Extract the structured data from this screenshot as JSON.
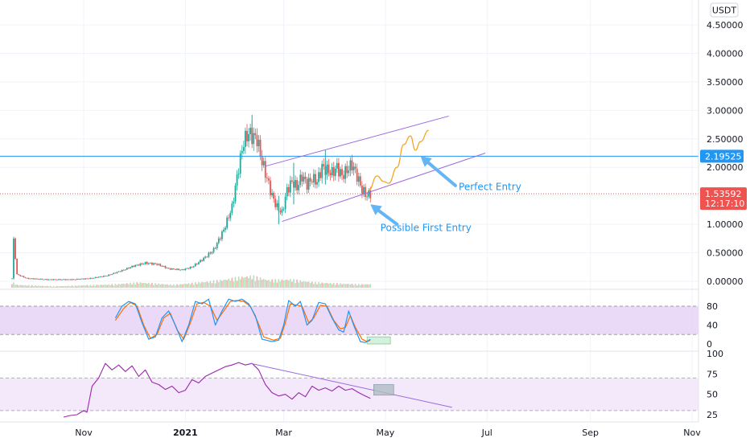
{
  "chart_data": {
    "type": "line",
    "title": "",
    "quote_currency": "USDT",
    "price_ylim": [
      -0.1,
      4.75
    ],
    "price_ticks": [
      "4.50000",
      "4.00000",
      "3.50000",
      "3.00000",
      "2.50000",
      "2.00000",
      "1.50000",
      "1.00000",
      "0.50000",
      "0.00000"
    ],
    "time_ticks": [
      {
        "label": "Nov",
        "bold": false
      },
      {
        "label": "2021",
        "bold": true
      },
      {
        "label": "Mar",
        "bold": false
      },
      {
        "label": "May",
        "bold": false
      },
      {
        "label": "Jul",
        "bold": false
      },
      {
        "label": "Sep",
        "bold": false
      },
      {
        "label": "Nov",
        "bold": false
      }
    ],
    "horizontal_level": {
      "value": 2.19525,
      "label": "2.19525",
      "color": "#2196f3"
    },
    "last_price": {
      "value": 1.53592,
      "label": "1.53592",
      "countdown": "12:17:10",
      "color": "#ef5350"
    },
    "price_series": [
      {
        "d": "2020-09-19",
        "v": 0.05
      },
      {
        "d": "2020-09-20",
        "v": 0.72
      },
      {
        "d": "2020-09-22",
        "v": 0.12
      },
      {
        "d": "2020-09-28",
        "v": 0.05
      },
      {
        "d": "2020-10-10",
        "v": 0.03
      },
      {
        "d": "2020-10-25",
        "v": 0.03
      },
      {
        "d": "2020-11-05",
        "v": 0.05
      },
      {
        "d": "2020-11-15",
        "v": 0.1
      },
      {
        "d": "2020-11-25",
        "v": 0.2
      },
      {
        "d": "2020-12-01",
        "v": 0.27
      },
      {
        "d": "2020-12-08",
        "v": 0.32
      },
      {
        "d": "2020-12-15",
        "v": 0.3
      },
      {
        "d": "2020-12-22",
        "v": 0.22
      },
      {
        "d": "2020-12-30",
        "v": 0.2
      },
      {
        "d": "2021-01-05",
        "v": 0.25
      },
      {
        "d": "2021-01-12",
        "v": 0.4
      },
      {
        "d": "2021-01-18",
        "v": 0.55
      },
      {
        "d": "2021-01-24",
        "v": 0.9
      },
      {
        "d": "2021-01-29",
        "v": 1.3
      },
      {
        "d": "2021-02-02",
        "v": 2.0
      },
      {
        "d": "2021-02-05",
        "v": 2.45
      },
      {
        "d": "2021-02-08",
        "v": 2.6
      },
      {
        "d": "2021-02-10",
        "v": 2.55
      },
      {
        "d": "2021-02-13",
        "v": 2.5
      },
      {
        "d": "2021-02-16",
        "v": 2.1
      },
      {
        "d": "2021-02-19",
        "v": 1.8
      },
      {
        "d": "2021-02-22",
        "v": 1.5
      },
      {
        "d": "2021-02-25",
        "v": 1.3
      },
      {
        "d": "2021-02-28",
        "v": 1.2
      },
      {
        "d": "2021-03-03",
        "v": 1.6
      },
      {
        "d": "2021-03-06",
        "v": 1.75
      },
      {
        "d": "2021-03-09",
        "v": 1.65
      },
      {
        "d": "2021-03-12",
        "v": 1.85
      },
      {
        "d": "2021-03-15",
        "v": 1.7
      },
      {
        "d": "2021-03-18",
        "v": 1.8
      },
      {
        "d": "2021-03-21",
        "v": 1.75
      },
      {
        "d": "2021-03-24",
        "v": 2.0
      },
      {
        "d": "2021-03-27",
        "v": 1.95
      },
      {
        "d": "2021-03-30",
        "v": 1.9
      },
      {
        "d": "2021-04-02",
        "v": 2.0
      },
      {
        "d": "2021-04-05",
        "v": 1.85
      },
      {
        "d": "2021-04-08",
        "v": 1.95
      },
      {
        "d": "2021-04-11",
        "v": 2.05
      },
      {
        "d": "2021-04-14",
        "v": 1.85
      },
      {
        "d": "2021-04-17",
        "v": 1.6
      },
      {
        "d": "2021-04-20",
        "v": 1.5
      },
      {
        "d": "2021-04-22",
        "v": 1.54
      }
    ],
    "price_spikes": [
      {
        "d": "2021-02-10",
        "high": 2.92,
        "low": 2.4
      },
      {
        "d": "2021-03-07",
        "high": 2.08,
        "low": 1.35
      },
      {
        "d": "2021-03-26",
        "high": 2.3,
        "low": 1.7
      },
      {
        "d": "2021-02-26",
        "high": 1.5,
        "low": 1.0
      }
    ],
    "volume_series": [
      {
        "d": "2020-09-19",
        "v": 0.5
      },
      {
        "d": "2020-09-22",
        "v": 0.25
      },
      {
        "d": "2020-10-15",
        "v": 0.12
      },
      {
        "d": "2020-11-20",
        "v": 0.3
      },
      {
        "d": "2020-12-05",
        "v": 0.45
      },
      {
        "d": "2020-12-25",
        "v": 0.25
      },
      {
        "d": "2021-01-20",
        "v": 0.6
      },
      {
        "d": "2021-02-03",
        "v": 0.9
      },
      {
        "d": "2021-02-10",
        "v": 1.0
      },
      {
        "d": "2021-02-20",
        "v": 0.65
      },
      {
        "d": "2021-03-05",
        "v": 0.7
      },
      {
        "d": "2021-03-20",
        "v": 0.45
      },
      {
        "d": "2021-04-05",
        "v": 0.35
      },
      {
        "d": "2021-04-15",
        "v": 0.3
      },
      {
        "d": "2021-04-22",
        "v": 0.3
      }
    ],
    "channel": {
      "upper": [
        {
          "d": "2021-02-18",
          "v": 2.02
        },
        {
          "d": "2021-06-08",
          "v": 2.9
        }
      ],
      "lower": [
        {
          "d": "2021-02-28",
          "v": 1.05
        },
        {
          "d": "2021-06-30",
          "v": 2.25
        }
      ],
      "color": "#9c6ade"
    },
    "projection": [
      {
        "d": "2021-04-21",
        "v": 1.6
      },
      {
        "d": "2021-04-26",
        "v": 1.85
      },
      {
        "d": "2021-04-30",
        "v": 1.75
      },
      {
        "d": "2021-05-03",
        "v": 1.72
      },
      {
        "d": "2021-05-08",
        "v": 2.0
      },
      {
        "d": "2021-05-12",
        "v": 2.4
      },
      {
        "d": "2021-05-16",
        "v": 2.55
      },
      {
        "d": "2021-05-19",
        "v": 2.3
      },
      {
        "d": "2021-05-22",
        "v": 2.45
      },
      {
        "d": "2021-05-27",
        "v": 2.65
      }
    ],
    "projection_color": "#f5a623",
    "annotations": [
      {
        "text": "Perfect Entry",
        "text_at": {
          "d": "2021-06-14",
          "v": 1.6
        },
        "arrow_from": {
          "d": "2021-06-12",
          "v": 1.68
        },
        "arrow_to": {
          "d": "2021-05-22",
          "v": 2.2
        }
      },
      {
        "text": "Possible First Entry",
        "text_at": {
          "d": "2021-04-28",
          "v": 0.88
        },
        "arrow_from": {
          "d": "2021-05-08",
          "v": 1.0
        },
        "arrow_to": {
          "d": "2021-04-22",
          "v": 1.35
        }
      }
    ],
    "stoch": {
      "ylim": [
        0,
        100
      ],
      "ticks": [
        "80",
        "40",
        "0"
      ],
      "band": [
        20,
        80
      ],
      "k_color": "#2196f3",
      "d_color": "#ff6d00",
      "k": [
        {
          "d": "2020-11-20",
          "v": 55
        },
        {
          "d": "2020-11-24",
          "v": 80
        },
        {
          "d": "2020-11-28",
          "v": 90
        },
        {
          "d": "2020-12-02",
          "v": 85
        },
        {
          "d": "2020-12-06",
          "v": 45
        },
        {
          "d": "2020-12-10",
          "v": 10
        },
        {
          "d": "2020-12-14",
          "v": 15
        },
        {
          "d": "2020-12-18",
          "v": 55
        },
        {
          "d": "2020-12-22",
          "v": 70
        },
        {
          "d": "2020-12-26",
          "v": 40
        },
        {
          "d": "2020-12-30",
          "v": 5
        },
        {
          "d": "2021-01-03",
          "v": 40
        },
        {
          "d": "2021-01-07",
          "v": 90
        },
        {
          "d": "2021-01-11",
          "v": 85
        },
        {
          "d": "2021-01-15",
          "v": 95
        },
        {
          "d": "2021-01-19",
          "v": 40
        },
        {
          "d": "2021-01-23",
          "v": 70
        },
        {
          "d": "2021-01-27",
          "v": 95
        },
        {
          "d": "2021-01-31",
          "v": 90
        },
        {
          "d": "2021-02-04",
          "v": 95
        },
        {
          "d": "2021-02-08",
          "v": 85
        },
        {
          "d": "2021-02-12",
          "v": 60
        },
        {
          "d": "2021-02-16",
          "v": 10
        },
        {
          "d": "2021-02-22",
          "v": 5
        },
        {
          "d": "2021-02-26",
          "v": 8
        },
        {
          "d": "2021-03-01",
          "v": 40
        },
        {
          "d": "2021-03-04",
          "v": 92
        },
        {
          "d": "2021-03-08",
          "v": 80
        },
        {
          "d": "2021-03-11",
          "v": 90
        },
        {
          "d": "2021-03-15",
          "v": 40
        },
        {
          "d": "2021-03-18",
          "v": 50
        },
        {
          "d": "2021-03-22",
          "v": 88
        },
        {
          "d": "2021-03-26",
          "v": 85
        },
        {
          "d": "2021-03-30",
          "v": 55
        },
        {
          "d": "2021-04-03",
          "v": 30
        },
        {
          "d": "2021-04-06",
          "v": 25
        },
        {
          "d": "2021-04-09",
          "v": 70
        },
        {
          "d": "2021-04-12",
          "v": 40
        },
        {
          "d": "2021-04-16",
          "v": 5
        },
        {
          "d": "2021-04-19",
          "v": 3
        },
        {
          "d": "2021-04-22",
          "v": 10
        }
      ],
      "d": [
        {
          "d": "2020-11-20",
          "v": 50
        },
        {
          "d": "2020-11-25",
          "v": 75
        },
        {
          "d": "2020-11-29",
          "v": 88
        },
        {
          "d": "2020-12-03",
          "v": 80
        },
        {
          "d": "2020-12-07",
          "v": 40
        },
        {
          "d": "2020-12-11",
          "v": 12
        },
        {
          "d": "2020-12-15",
          "v": 20
        },
        {
          "d": "2020-12-19",
          "v": 55
        },
        {
          "d": "2020-12-23",
          "v": 65
        },
        {
          "d": "2020-12-27",
          "v": 30
        },
        {
          "d": "2020-12-31",
          "v": 10
        },
        {
          "d": "2021-01-04",
          "v": 45
        },
        {
          "d": "2021-01-08",
          "v": 85
        },
        {
          "d": "2021-01-12",
          "v": 88
        },
        {
          "d": "2021-01-16",
          "v": 80
        },
        {
          "d": "2021-01-20",
          "v": 50
        },
        {
          "d": "2021-01-24",
          "v": 70
        },
        {
          "d": "2021-01-28",
          "v": 90
        },
        {
          "d": "2021-02-01",
          "v": 92
        },
        {
          "d": "2021-02-05",
          "v": 90
        },
        {
          "d": "2021-02-09",
          "v": 80
        },
        {
          "d": "2021-02-13",
          "v": 50
        },
        {
          "d": "2021-02-17",
          "v": 15
        },
        {
          "d": "2021-02-23",
          "v": 8
        },
        {
          "d": "2021-02-27",
          "v": 12
        },
        {
          "d": "2021-03-02",
          "v": 45
        },
        {
          "d": "2021-03-05",
          "v": 85
        },
        {
          "d": "2021-03-09",
          "v": 82
        },
        {
          "d": "2021-03-12",
          "v": 80
        },
        {
          "d": "2021-03-16",
          "v": 45
        },
        {
          "d": "2021-03-19",
          "v": 55
        },
        {
          "d": "2021-03-23",
          "v": 82
        },
        {
          "d": "2021-03-27",
          "v": 80
        },
        {
          "d": "2021-03-31",
          "v": 50
        },
        {
          "d": "2021-04-04",
          "v": 32
        },
        {
          "d": "2021-04-07",
          "v": 35
        },
        {
          "d": "2021-04-10",
          "v": 60
        },
        {
          "d": "2021-04-13",
          "v": 35
        },
        {
          "d": "2021-04-17",
          "v": 10
        },
        {
          "d": "2021-04-20",
          "v": 5
        },
        {
          "d": "2021-04-22",
          "v": 8
        }
      ],
      "highlight": {
        "d0": "2021-04-20",
        "d1": "2021-05-04",
        "v0": 0,
        "v1": 15
      }
    },
    "rsi": {
      "ylim": [
        20,
        100
      ],
      "ticks": [
        "100",
        "75",
        "50",
        "25"
      ],
      "band": [
        30,
        70
      ],
      "color": "#9c27b0",
      "values": [
        {
          "d": "2020-10-20",
          "v": 22
        },
        {
          "d": "2020-10-24",
          "v": 24
        },
        {
          "d": "2020-10-28",
          "v": 25
        },
        {
          "d": "2020-11-01",
          "v": 30
        },
        {
          "d": "2020-11-03",
          "v": 28
        },
        {
          "d": "2020-11-06",
          "v": 60
        },
        {
          "d": "2020-11-10",
          "v": 70
        },
        {
          "d": "2020-11-14",
          "v": 88
        },
        {
          "d": "2020-11-18",
          "v": 80
        },
        {
          "d": "2020-11-22",
          "v": 86
        },
        {
          "d": "2020-11-26",
          "v": 78
        },
        {
          "d": "2020-11-30",
          "v": 85
        },
        {
          "d": "2020-12-04",
          "v": 72
        },
        {
          "d": "2020-12-08",
          "v": 80
        },
        {
          "d": "2020-12-12",
          "v": 65
        },
        {
          "d": "2020-12-16",
          "v": 62
        },
        {
          "d": "2020-12-20",
          "v": 56
        },
        {
          "d": "2020-12-24",
          "v": 60
        },
        {
          "d": "2020-12-28",
          "v": 52
        },
        {
          "d": "2021-01-01",
          "v": 55
        },
        {
          "d": "2021-01-05",
          "v": 68
        },
        {
          "d": "2021-01-09",
          "v": 64
        },
        {
          "d": "2021-01-13",
          "v": 72
        },
        {
          "d": "2021-01-17",
          "v": 76
        },
        {
          "d": "2021-01-21",
          "v": 80
        },
        {
          "d": "2021-01-25",
          "v": 84
        },
        {
          "d": "2021-01-29",
          "v": 86
        },
        {
          "d": "2021-02-02",
          "v": 89
        },
        {
          "d": "2021-02-06",
          "v": 86
        },
        {
          "d": "2021-02-10",
          "v": 88
        },
        {
          "d": "2021-02-14",
          "v": 80
        },
        {
          "d": "2021-02-18",
          "v": 62
        },
        {
          "d": "2021-02-22",
          "v": 52
        },
        {
          "d": "2021-02-26",
          "v": 48
        },
        {
          "d": "2021-03-02",
          "v": 50
        },
        {
          "d": "2021-03-06",
          "v": 44
        },
        {
          "d": "2021-03-10",
          "v": 52
        },
        {
          "d": "2021-03-14",
          "v": 47
        },
        {
          "d": "2021-03-18",
          "v": 60
        },
        {
          "d": "2021-03-22",
          "v": 55
        },
        {
          "d": "2021-03-26",
          "v": 58
        },
        {
          "d": "2021-03-30",
          "v": 54
        },
        {
          "d": "2021-04-03",
          "v": 60
        },
        {
          "d": "2021-04-07",
          "v": 55
        },
        {
          "d": "2021-04-11",
          "v": 57
        },
        {
          "d": "2021-04-15",
          "v": 52
        },
        {
          "d": "2021-04-19",
          "v": 48
        },
        {
          "d": "2021-04-22",
          "v": 45
        }
      ],
      "trendline": [
        {
          "d": "2021-02-09",
          "v": 88
        },
        {
          "d": "2021-06-10",
          "v": 34
        }
      ],
      "trendline_color": "#9c6ade",
      "highlight": {
        "d0": "2021-04-24",
        "d1": "2021-05-06",
        "v0": 49,
        "v1": 62
      }
    }
  }
}
